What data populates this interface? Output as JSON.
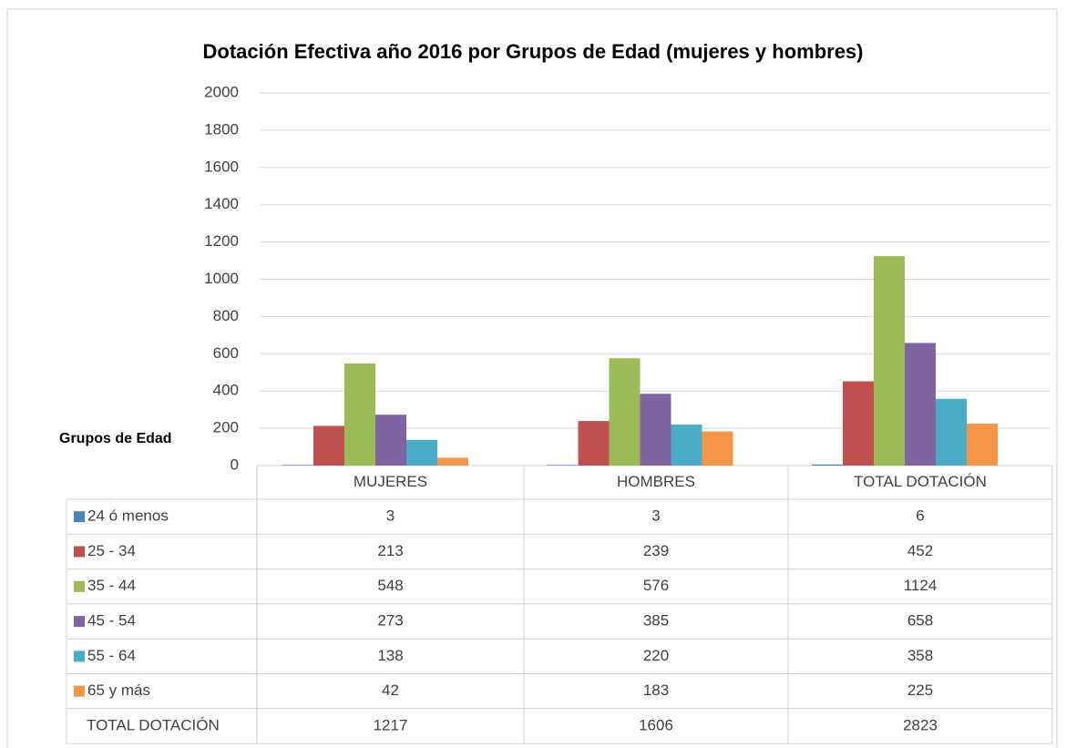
{
  "chart_data": {
    "type": "bar",
    "title": "Dotación Efectiva año 2016 por Grupos de Edad (mujeres y hombres)",
    "axis_label": "Grupos de Edad",
    "categories": [
      "MUJERES",
      "HOMBRES",
      "TOTAL DOTACIÓN"
    ],
    "series": [
      {
        "name": "24 ó menos",
        "color": "#4f81bd",
        "values": [
          3,
          3,
          6
        ]
      },
      {
        "name": "25 - 34",
        "color": "#c0504d",
        "values": [
          213,
          239,
          452
        ]
      },
      {
        "name": "35 - 44",
        "color": "#9bbb59",
        "values": [
          548,
          576,
          1124
        ]
      },
      {
        "name": "45 - 54",
        "color": "#8064a2",
        "values": [
          273,
          385,
          658
        ]
      },
      {
        "name": "55 - 64",
        "color": "#4bacc6",
        "values": [
          138,
          220,
          358
        ]
      },
      {
        "name": "65 y más",
        "color": "#f79646",
        "values": [
          42,
          183,
          225
        ]
      }
    ],
    "total_row": {
      "name": "TOTAL DOTACIÓN",
      "values": [
        1217,
        1606,
        2823
      ]
    },
    "ylim": [
      0,
      2000
    ],
    "yticks": [
      0,
      200,
      400,
      600,
      800,
      1000,
      1200,
      1400,
      1600,
      1800,
      2000
    ],
    "grid": true
  }
}
